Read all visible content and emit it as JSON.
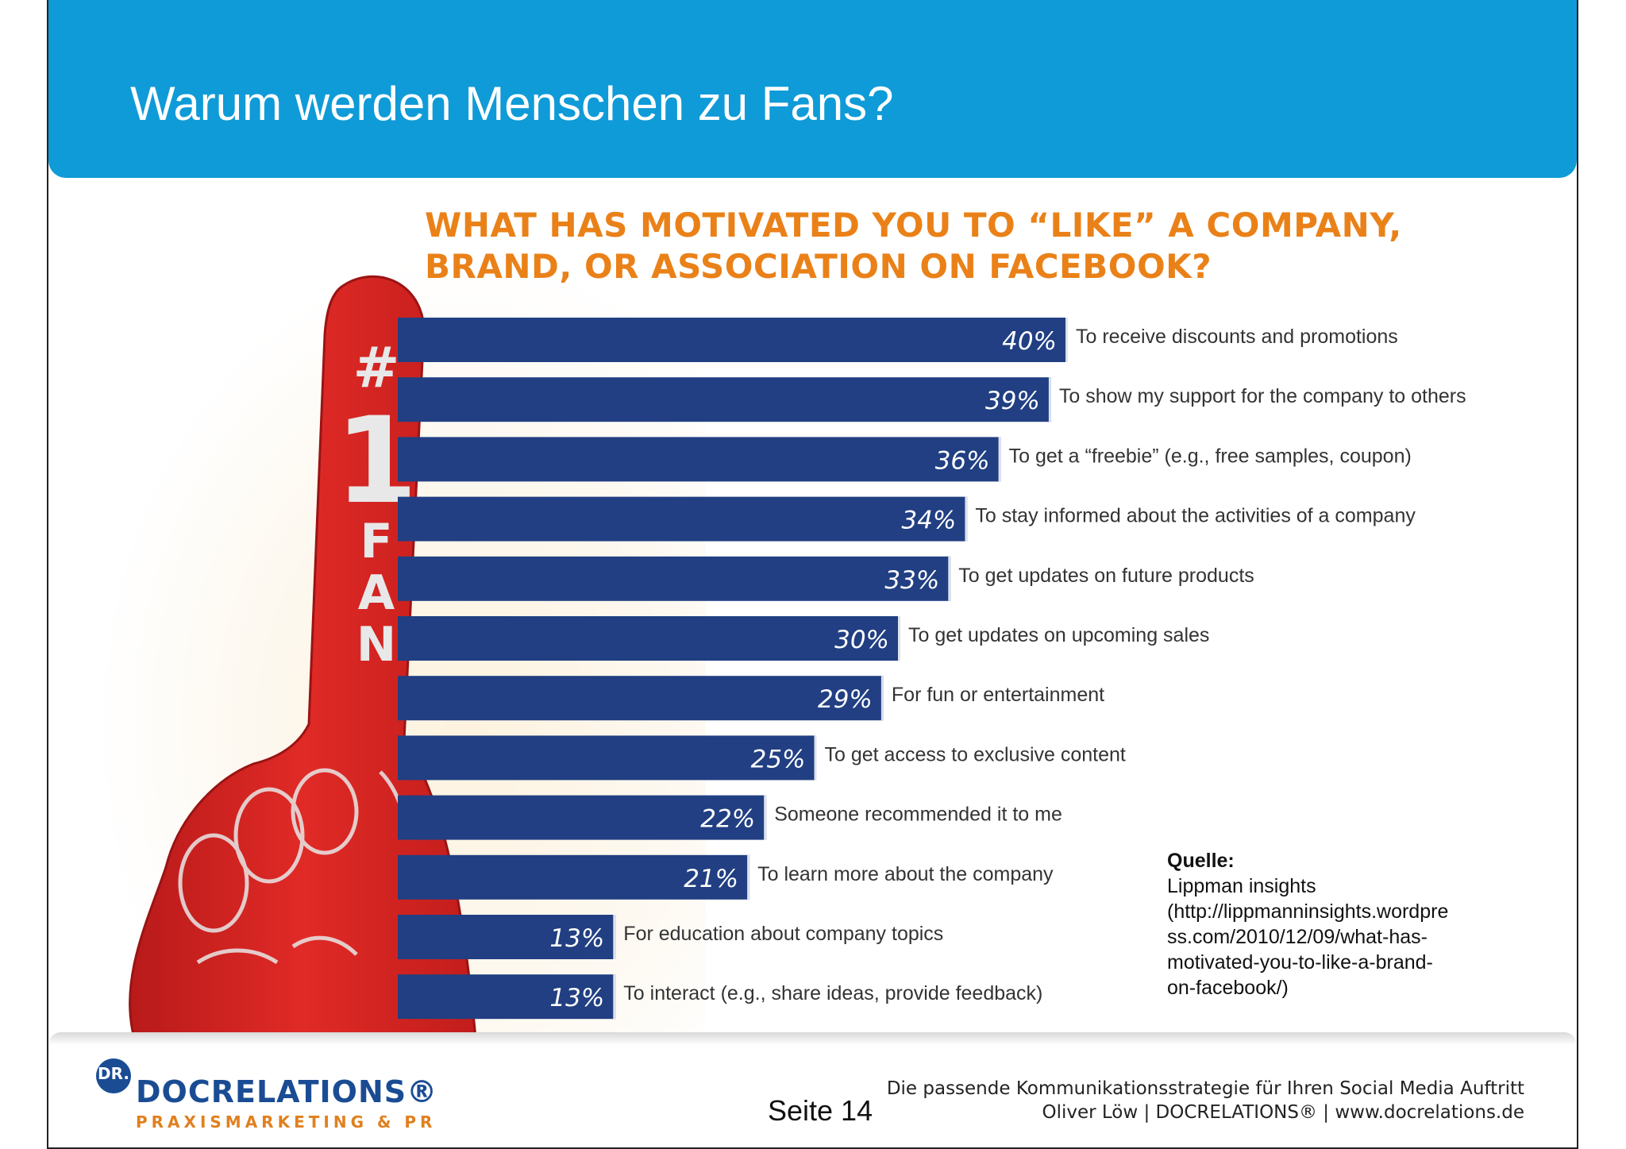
{
  "header": {
    "title": "Warum werden Menschen zu Fans?"
  },
  "chart_data": {
    "type": "bar",
    "orientation": "horizontal",
    "title_lines": [
      "WHAT HAS MOTIVATED YOU TO “LIKE” A COMPANY,",
      "BRAND, OR ASSOCIATION ON FACEBOOK?"
    ],
    "categories": [
      "To receive discounts and promotions",
      "To show my support for the company to others",
      "To get a “freebie” (e.g., free samples, coupon)",
      "To stay informed about the  activities of a company",
      "To get updates on future products",
      "To get updates on upcoming sales",
      "For fun or entertainment",
      "To get access to exclusive content",
      "Someone recommended it to me",
      "To learn more about the company",
      "For education about company topics",
      "To interact (e.g., share ideas, provide feedback)"
    ],
    "values": [
      40,
      39,
      36,
      34,
      33,
      30,
      29,
      25,
      22,
      21,
      13,
      13
    ],
    "value_labels": [
      "40%",
      "39%",
      "36%",
      "34%",
      "33%",
      "30%",
      "29%",
      "25%",
      "22%",
      "21%",
      "13%",
      "13%"
    ],
    "unit": "%",
    "bar_color": "#213f82",
    "label_color": "#ffffff",
    "illustration": "foam-finger-icon",
    "illustration_text": [
      "#",
      "1",
      "F",
      "A",
      "N"
    ]
  },
  "source": {
    "heading": "Quelle:",
    "lines": [
      "Lippman insights",
      "(http://lippmanninsights.wordpre",
      "ss.com/2010/12/09/what-has-",
      "motivated-you-to-like-a-brand-",
      "on-facebook/)"
    ]
  },
  "footer": {
    "logo_badge": "DR.",
    "logo_name": "DOCRELATIONS®",
    "logo_tagline": "PRAXISMARKETING & PR",
    "page_label": "Seite 14",
    "tagline_line1": "Die passende Kommunikationsstrategie für Ihren Social Media Auftritt",
    "tagline_line2": "Oliver Löw | DOCRELATIONS® | www.docrelations.de"
  }
}
